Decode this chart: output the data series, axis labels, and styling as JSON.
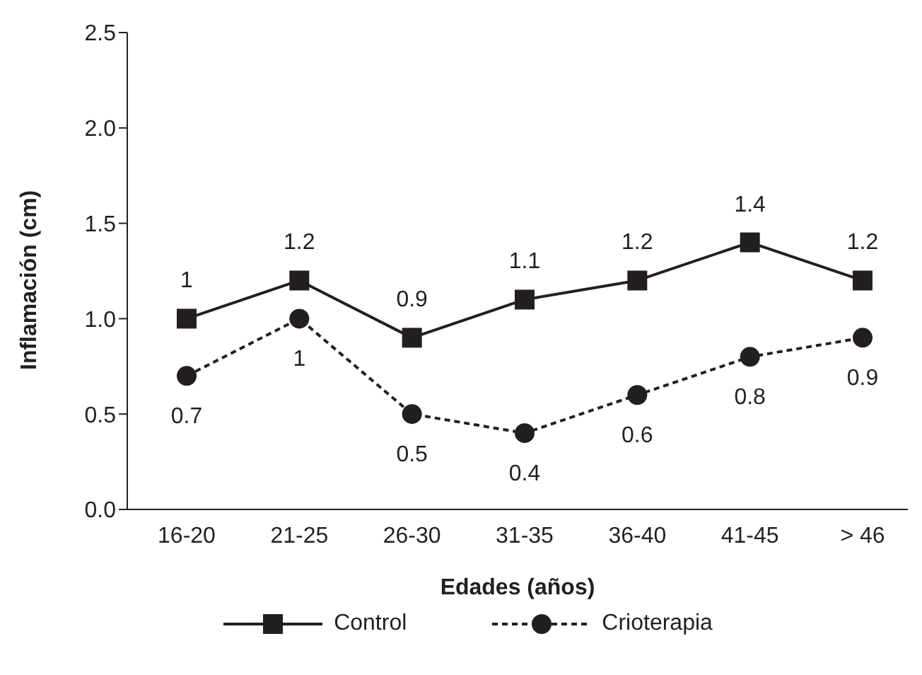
{
  "chart_data": {
    "type": "line",
    "xlabel": "Edades (años)",
    "ylabel": "Inflamación (cm)",
    "categories": [
      "16-20",
      "21-25",
      "26-30",
      "31-35",
      "36-40",
      "41-45",
      "> 46"
    ],
    "series": [
      {
        "name": "Control",
        "color": "#231f20",
        "values": [
          1,
          1.2,
          0.9,
          1.1,
          1.2,
          1.4,
          1.2
        ],
        "marker": "square",
        "line_style": "solid"
      },
      {
        "name": "Crioterapia",
        "color": "#231f20",
        "values": [
          0.7,
          1,
          0.5,
          0.4,
          0.6,
          0.8,
          0.9
        ],
        "marker": "circle",
        "line_style": "dashed"
      }
    ],
    "ylim": [
      0,
      2.5
    ],
    "yticks": [
      {
        "value": 0,
        "label": "0.0"
      },
      {
        "value": 0.5,
        "label": "0.5"
      },
      {
        "value": 1,
        "label": "1.0"
      },
      {
        "value": 1.5,
        "label": "1.5"
      },
      {
        "value": 2,
        "label": "2.0"
      },
      {
        "value": 2.5,
        "label": "2.5"
      }
    ],
    "grid": false,
    "legend": "bottom",
    "data_labels": true
  }
}
